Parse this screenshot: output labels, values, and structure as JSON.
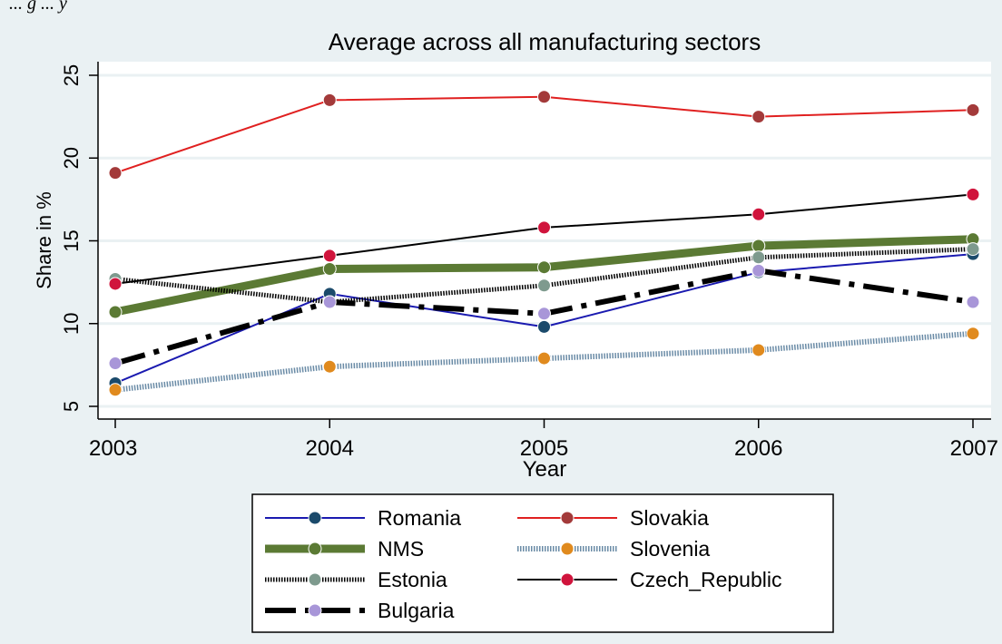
{
  "crop_text": "... g ... y",
  "colors": {
    "outer_bg": "#eaf1f3",
    "plot_bg": "#ffffff",
    "grid": "#eaf1f3",
    "axis": "#000000",
    "marker_outline": "#ffffff"
  },
  "chart_data": {
    "type": "line",
    "title": "Average across all manufacturing sectors",
    "xlabel": "Year",
    "ylabel": "Share in %",
    "x": [
      2003,
      2004,
      2005,
      2006,
      2007
    ],
    "xticks": [
      "2003",
      "2004",
      "2005",
      "2006",
      "2007"
    ],
    "yticks": [
      "5",
      "10",
      "15",
      "20",
      "25"
    ],
    "xlim": [
      2003,
      2007
    ],
    "ylim": [
      5,
      25
    ],
    "grid": true,
    "legend_position": "bottom",
    "series": [
      {
        "name": "Romania",
        "values": [
          6.4,
          11.8,
          9.8,
          13.1,
          14.2
        ],
        "line_color": "#1a1ab0",
        "marker_color": "#1b4a6b",
        "style": "solid",
        "width": 2
      },
      {
        "name": "Slovakia",
        "values": [
          19.1,
          23.5,
          23.7,
          22.5,
          22.9
        ],
        "line_color": "#e02020",
        "marker_color": "#a33a3a",
        "style": "solid",
        "width": 2
      },
      {
        "name": "NMS",
        "values": [
          10.7,
          13.3,
          13.4,
          14.7,
          15.1
        ],
        "line_color": "#5b7a34",
        "marker_color": "#5b7a34",
        "style": "solid",
        "width": 9
      },
      {
        "name": "Slovenia",
        "values": [
          6.0,
          7.4,
          7.9,
          8.4,
          9.4
        ],
        "line_color": "#6a8ba6",
        "marker_color": "#e08a1e",
        "style": "dotted",
        "width": 6
      },
      {
        "name": "Estonia",
        "values": [
          12.7,
          11.3,
          12.3,
          14.0,
          14.5
        ],
        "line_color": "#000000",
        "marker_color": "#7e9a8e",
        "style": "dotted",
        "width": 5
      },
      {
        "name": "Czech_Republic",
        "values": [
          12.4,
          14.1,
          15.8,
          16.6,
          17.8
        ],
        "line_color": "#000000",
        "marker_color": "#d0143c",
        "style": "solid",
        "width": 2
      },
      {
        "name": "Bulgaria",
        "values": [
          7.6,
          11.3,
          10.6,
          13.2,
          11.3
        ],
        "line_color": "#000000",
        "marker_color": "#a896d8",
        "style": "dashdot",
        "width": 6
      }
    ]
  }
}
